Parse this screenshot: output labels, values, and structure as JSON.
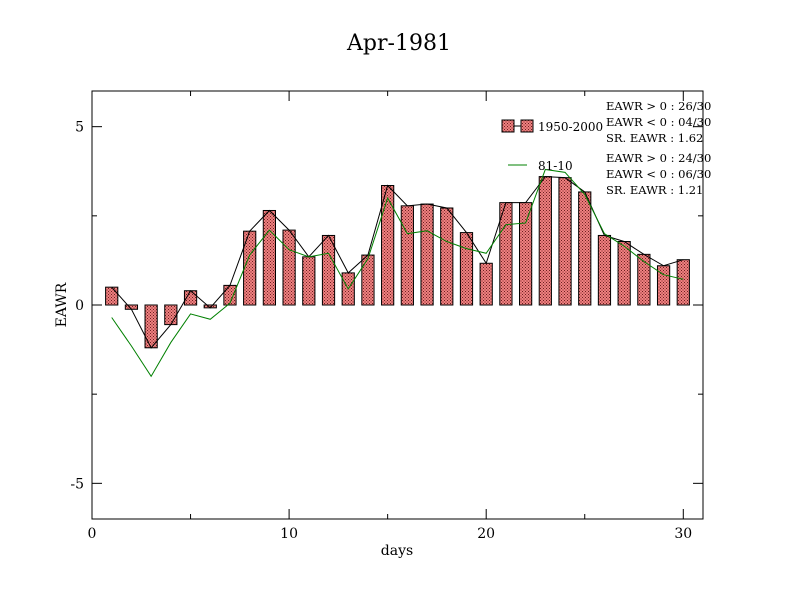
{
  "chart_data": {
    "type": "bar",
    "title": "Apr-1981",
    "xlabel": "days",
    "ylabel": "EAWR",
    "xlim": [
      0,
      31
    ],
    "ylim": [
      -6,
      6
    ],
    "xticks": [
      0,
      10,
      20,
      30
    ],
    "yticks": [
      -5,
      0,
      5
    ],
    "grid": false,
    "x": [
      1,
      2,
      3,
      4,
      5,
      6,
      7,
      8,
      9,
      10,
      11,
      12,
      13,
      14,
      15,
      16,
      17,
      18,
      19,
      20,
      21,
      22,
      23,
      24,
      25,
      26,
      27,
      28,
      29,
      30
    ],
    "series": [
      {
        "name": "1950-2000",
        "kind": "bar",
        "values": [
          0.5,
          -0.12,
          -1.2,
          -0.55,
          0.4,
          -0.08,
          0.55,
          2.07,
          2.65,
          2.1,
          1.35,
          1.95,
          0.9,
          1.4,
          3.35,
          2.78,
          2.83,
          2.72,
          2.03,
          1.17,
          2.87,
          2.87,
          3.6,
          3.57,
          3.17,
          1.95,
          1.78,
          1.42,
          1.1,
          1.27
        ]
      },
      {
        "name": "81-10",
        "kind": "line",
        "values": [
          -0.35,
          -1.15,
          -2.0,
          -1.05,
          -0.25,
          -0.4,
          0.05,
          1.4,
          2.1,
          1.55,
          1.35,
          1.45,
          0.45,
          1.3,
          3.0,
          2.0,
          2.08,
          1.78,
          1.58,
          1.45,
          2.25,
          2.3,
          3.8,
          3.72,
          3.1,
          2.0,
          1.65,
          1.22,
          0.85,
          0.72
        ]
      }
    ],
    "colors": {
      "bar_fill": "#f08080",
      "bar_stroke": "#000000",
      "connector_line": "#000000",
      "line_81_10": "#008000"
    },
    "legend": {
      "placement": "top-right",
      "entries": [
        {
          "label": "1950-2000",
          "stats": [
            "EAWR > 0 : 26/30",
            "EAWR < 0 : 04/30",
            "SR. EAWR :  1.62"
          ]
        },
        {
          "label": "81-10",
          "stats": [
            "EAWR > 0 : 24/30",
            "EAWR < 0 : 06/30",
            "SR. EAWR :  1.21"
          ]
        }
      ]
    }
  }
}
